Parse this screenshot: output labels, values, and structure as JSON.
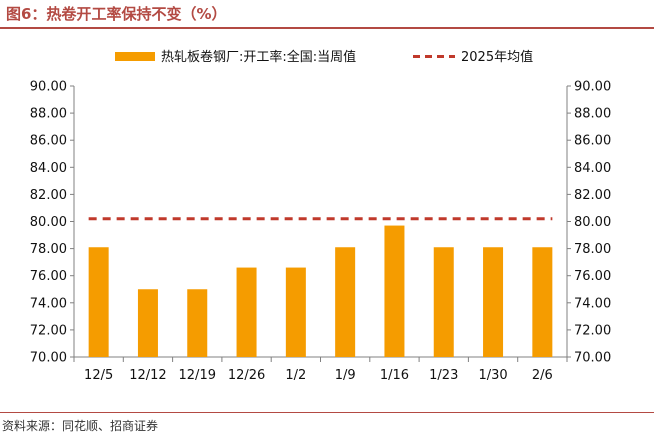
{
  "figure": {
    "title": "图6：热卷开工率保持不变（%）",
    "source": "资料来源：同花顺、招商证券"
  },
  "chart_data": {
    "type": "bar",
    "categories": [
      "12/5",
      "12/12",
      "12/19",
      "12/26",
      "1/2",
      "1/9",
      "1/16",
      "1/23",
      "1/30",
      "2/6"
    ],
    "series": [
      {
        "name": "热轧板卷钢厂:开工率:全国:当周值",
        "type": "bar",
        "color": "#f59c00",
        "values": [
          78.1,
          75.0,
          75.0,
          76.6,
          76.6,
          78.1,
          79.7,
          78.1,
          78.1,
          78.1
        ]
      },
      {
        "name": "2025年均值",
        "type": "dashed-line",
        "color": "#c0392b",
        "values": [
          80.2,
          80.2,
          80.2,
          80.2,
          80.2,
          80.2,
          80.2,
          80.2,
          80.2,
          80.2
        ]
      }
    ],
    "ylim": [
      70,
      90
    ],
    "y_ticks": [
      "70.00",
      "72.00",
      "74.00",
      "76.00",
      "78.00",
      "80.00",
      "82.00",
      "84.00",
      "86.00",
      "88.00",
      "90.00"
    ],
    "y2_ticks": [
      "70.00",
      "72.00",
      "74.00",
      "76.00",
      "78.00",
      "80.00",
      "82.00",
      "84.00",
      "86.00",
      "88.00",
      "90.00"
    ],
    "legend_position": "top",
    "grid": false
  }
}
